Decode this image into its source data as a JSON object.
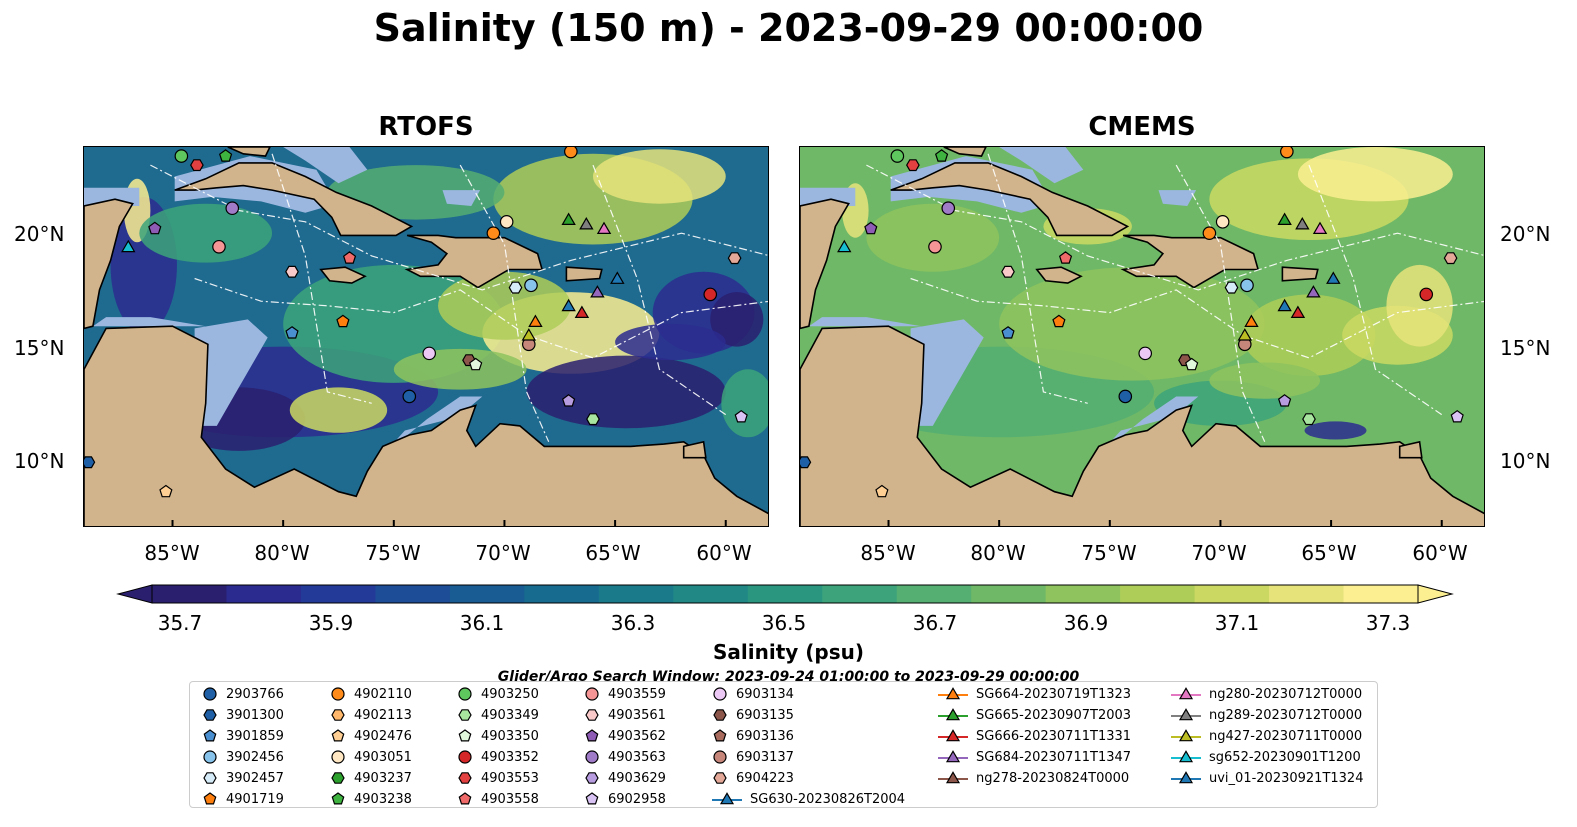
{
  "title": "Salinity (150 m) - 2023-09-29 00:00:00",
  "panels": [
    {
      "title": "RTOFS"
    },
    {
      "title": "CMEMS"
    }
  ],
  "lat_labels": [
    "20°N",
    "15°N",
    "10°N"
  ],
  "lon_labels": [
    "85°W",
    "80°W",
    "75°W",
    "70°W",
    "65°W",
    "60°W"
  ],
  "colorbar": {
    "label": "Salinity (psu)",
    "ticks": [
      "35.7",
      "35.9",
      "36.1",
      "36.3",
      "36.5",
      "36.7",
      "36.9",
      "37.1",
      "37.3"
    ],
    "colors": [
      "#2a1f6e",
      "#2b2b8f",
      "#243a98",
      "#1e4d97",
      "#195c94",
      "#176b8f",
      "#1b7a8a",
      "#218886",
      "#2a9680",
      "#3ca37a",
      "#55ae72",
      "#6fb867",
      "#8ec35e",
      "#aecd58",
      "#cbd962",
      "#e6e37a",
      "#fbef92"
    ]
  },
  "search_window": "Glider/Argo Search Window: 2023-09-24 01:00:00 to 2023-09-29 00:00:00",
  "legend": {
    "floats": [
      {
        "label": "2903766",
        "marker": "circle",
        "color": "#1f5fa5"
      },
      {
        "label": "3901300",
        "marker": "hexagon",
        "color": "#1f5fa5"
      },
      {
        "label": "3901859",
        "marker": "pentagon",
        "color": "#4a8fd0"
      },
      {
        "label": "3902456",
        "marker": "circle",
        "color": "#88c3ec"
      },
      {
        "label": "3902457",
        "marker": "hexagon",
        "color": "#d6ebf8"
      },
      {
        "label": "4901719",
        "marker": "pentagon",
        "color": "#ff7f0e"
      },
      {
        "label": "4902110",
        "marker": "circle",
        "color": "#ff8c1a"
      },
      {
        "label": "4902113",
        "marker": "hexagon",
        "color": "#ffb86b"
      },
      {
        "label": "4902476",
        "marker": "pentagon",
        "color": "#ffcf94"
      },
      {
        "label": "4903051",
        "marker": "circle",
        "color": "#ffe7c4"
      },
      {
        "label": "4903237",
        "marker": "hexagon",
        "color": "#2ca02c"
      },
      {
        "label": "4903238",
        "marker": "pentagon",
        "color": "#3fb33f"
      },
      {
        "label": "4903250",
        "marker": "circle",
        "color": "#5ec75e"
      },
      {
        "label": "4903349",
        "marker": "hexagon",
        "color": "#a8e6a0"
      },
      {
        "label": "4903350",
        "marker": "pentagon",
        "color": "#e2f8dc"
      },
      {
        "label": "4903352",
        "marker": "circle",
        "color": "#d62728"
      },
      {
        "label": "4903553",
        "marker": "hexagon",
        "color": "#e34141"
      },
      {
        "label": "4903558",
        "marker": "pentagon",
        "color": "#f06a6a"
      },
      {
        "label": "4903559",
        "marker": "circle",
        "color": "#f59595"
      },
      {
        "label": "4903561",
        "marker": "hexagon",
        "color": "#f9c9c9"
      },
      {
        "label": "4903562",
        "marker": "pentagon",
        "color": "#8e5cb5"
      },
      {
        "label": "4903563",
        "marker": "circle",
        "color": "#a07cc8"
      },
      {
        "label": "4903629",
        "marker": "hexagon",
        "color": "#b79ce0"
      },
      {
        "label": "6902958",
        "marker": "pentagon",
        "color": "#d9c3f5"
      },
      {
        "label": "6903134",
        "marker": "circle",
        "color": "#ecc8f5"
      },
      {
        "label": "6903135",
        "marker": "hexagon",
        "color": "#8c564b"
      },
      {
        "label": "6903136",
        "marker": "pentagon",
        "color": "#a86b5e"
      },
      {
        "label": "6903137",
        "marker": "circle",
        "color": "#c6867a"
      },
      {
        "label": "6904223",
        "marker": "hexagon",
        "color": "#e3a898"
      },
      {
        "label": "SG630-20230826T2004",
        "marker": "triangle",
        "color": "#1f77b4"
      }
    ],
    "gliders": [
      {
        "label": "SG664-20230719T1323",
        "color": "#ff7f0e"
      },
      {
        "label": "SG665-20230907T2003",
        "color": "#2ca02c"
      },
      {
        "label": "SG666-20230711T1331",
        "color": "#d62728"
      },
      {
        "label": "SG684-20230711T1347",
        "color": "#9467bd"
      },
      {
        "label": "ng278-20230824T0000",
        "color": "#8c564b"
      },
      {
        "label": "ng280-20230712T0000",
        "color": "#e377c2"
      },
      {
        "label": "ng289-20230712T0000",
        "color": "#7f7f7f"
      },
      {
        "label": "ng427-20230711T0000",
        "color": "#bcbd22"
      },
      {
        "label": "sg652-20230901T1200",
        "color": "#17becf"
      },
      {
        "label": "uvi_01-20230921T1324",
        "color": "#1f77b4"
      }
    ]
  },
  "map_colors": {
    "land": "#d2b48c",
    "shelf": "#9bb7e0",
    "deep": "#2b1f6a",
    "coast": "#000000"
  },
  "markers": [
    {
      "lon": -84.6,
      "lat": 23.4,
      "shape": "circle",
      "color": "#5ec75e"
    },
    {
      "lon": -83.9,
      "lat": 23.0,
      "shape": "hexagon",
      "color": "#e34141"
    },
    {
      "lon": -82.6,
      "lat": 23.4,
      "shape": "pentagon",
      "color": "#3fb33f"
    },
    {
      "lon": -67.0,
      "lat": 23.6,
      "shape": "circle",
      "color": "#ff8c1a"
    },
    {
      "lon": -82.3,
      "lat": 21.1,
      "shape": "circle",
      "color": "#a07cc8"
    },
    {
      "lon": -85.8,
      "lat": 20.2,
      "shape": "pentagon",
      "color": "#8e5cb5"
    },
    {
      "lon": -82.9,
      "lat": 19.4,
      "shape": "circle",
      "color": "#f59595"
    },
    {
      "lon": -79.6,
      "lat": 18.3,
      "shape": "hexagon",
      "color": "#f9c9c9"
    },
    {
      "lon": -77.0,
      "lat": 18.9,
      "shape": "pentagon",
      "color": "#f06a6a"
    },
    {
      "lon": -69.9,
      "lat": 20.5,
      "shape": "circle",
      "color": "#ffe7c4"
    },
    {
      "lon": -70.5,
      "lat": 20.0,
      "shape": "circle",
      "color": "#ff8c1a"
    },
    {
      "lon": -69.5,
      "lat": 17.6,
      "shape": "hexagon",
      "color": "#d6ebf8"
    },
    {
      "lon": -68.8,
      "lat": 17.7,
      "shape": "circle",
      "color": "#88c3ec"
    },
    {
      "lon": -59.6,
      "lat": 18.9,
      "shape": "hexagon",
      "color": "#e3a898"
    },
    {
      "lon": -60.7,
      "lat": 17.3,
      "shape": "circle",
      "color": "#d62728"
    },
    {
      "lon": -77.3,
      "lat": 16.1,
      "shape": "pentagon",
      "color": "#ff7f0e"
    },
    {
      "lon": -79.6,
      "lat": 15.6,
      "shape": "pentagon",
      "color": "#4a8fd0"
    },
    {
      "lon": -73.4,
      "lat": 14.7,
      "shape": "circle",
      "color": "#ecc8f5"
    },
    {
      "lon": -71.6,
      "lat": 14.4,
      "shape": "hexagon",
      "color": "#8c564b"
    },
    {
      "lon": -71.3,
      "lat": 14.2,
      "shape": "pentagon",
      "color": "#e2f8dc"
    },
    {
      "lon": -68.9,
      "lat": 15.1,
      "shape": "circle",
      "color": "#c6867a"
    },
    {
      "lon": -74.3,
      "lat": 12.8,
      "shape": "circle",
      "color": "#1f5fa5"
    },
    {
      "lon": -67.1,
      "lat": 12.6,
      "shape": "pentagon",
      "color": "#b79ce0"
    },
    {
      "lon": -66.0,
      "lat": 11.8,
      "shape": "hexagon",
      "color": "#a8e6a0"
    },
    {
      "lon": -59.3,
      "lat": 11.9,
      "shape": "pentagon",
      "color": "#d9c3f5"
    },
    {
      "lon": -88.8,
      "lat": 9.9,
      "shape": "hexagon",
      "color": "#1f5fa5"
    },
    {
      "lon": -85.3,
      "lat": 8.6,
      "shape": "pentagon",
      "color": "#ffcf94"
    },
    {
      "lon": -67.1,
      "lat": 20.6,
      "shape": "triangle",
      "color": "#2ca02c"
    },
    {
      "lon": -66.3,
      "lat": 20.4,
      "shape": "triangle",
      "color": "#7f7f7f"
    },
    {
      "lon": -65.5,
      "lat": 20.2,
      "shape": "triangle",
      "color": "#e377c2"
    },
    {
      "lon": -87.0,
      "lat": 19.4,
      "shape": "triangle",
      "color": "#17becf"
    },
    {
      "lon": -64.9,
      "lat": 18.0,
      "shape": "triangle",
      "color": "#1f77b4"
    },
    {
      "lon": -65.8,
      "lat": 17.4,
      "shape": "triangle",
      "color": "#9467bd"
    },
    {
      "lon": -67.1,
      "lat": 16.8,
      "shape": "triangle",
      "color": "#1f77b4"
    },
    {
      "lon": -66.5,
      "lat": 16.5,
      "shape": "triangle",
      "color": "#d62728"
    },
    {
      "lon": -68.6,
      "lat": 16.1,
      "shape": "triangle",
      "color": "#ff7f0e"
    },
    {
      "lon": -68.9,
      "lat": 15.5,
      "shape": "triangle",
      "color": "#bcbd22"
    }
  ]
}
